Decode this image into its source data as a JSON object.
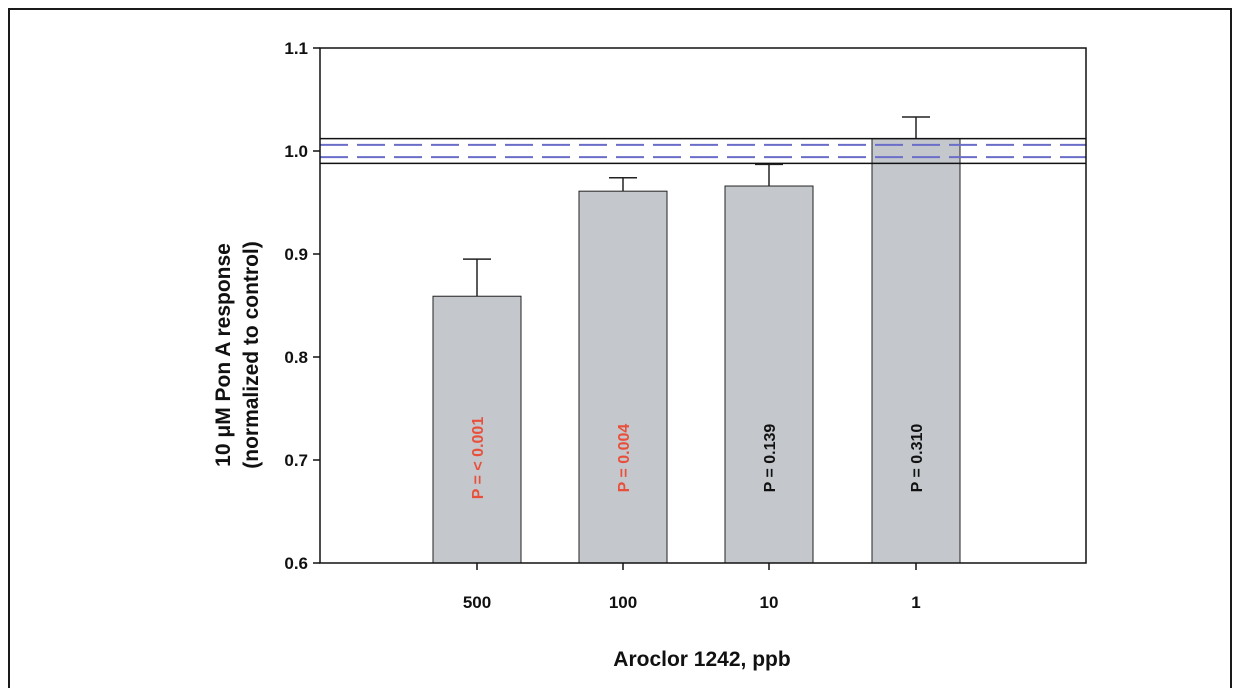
{
  "chart_data": {
    "type": "bar",
    "categories": [
      "500",
      "100",
      "10",
      "1"
    ],
    "values": [
      0.859,
      0.961,
      0.966,
      1.012
    ],
    "errors": [
      0.036,
      0.013,
      0.021,
      0.021
    ],
    "p_values": [
      "P = < 0.001",
      "P = 0.004",
      "P = 0.139",
      "P = 0.310"
    ],
    "p_colors": [
      "#e8503c",
      "#e8503c",
      "#111111",
      "#111111"
    ],
    "xlabel": "Aroclor 1242, ppb",
    "ylabel_line1": "10 μM Pon A response",
    "ylabel_line2": "(normalized to control)",
    "ylim": [
      0.6,
      1.1
    ],
    "yticks": [
      "0.6",
      "0.7",
      "0.8",
      "0.9",
      "1.0",
      "1.1"
    ],
    "reference_band": {
      "upper": 1.012,
      "lower": 0.988,
      "dashed_upper": 1.006,
      "dashed_lower": 0.994
    },
    "bar_color": "#c4c8cc",
    "dash_color": "#6a6ec8",
    "grid": false,
    "legend": "none"
  }
}
